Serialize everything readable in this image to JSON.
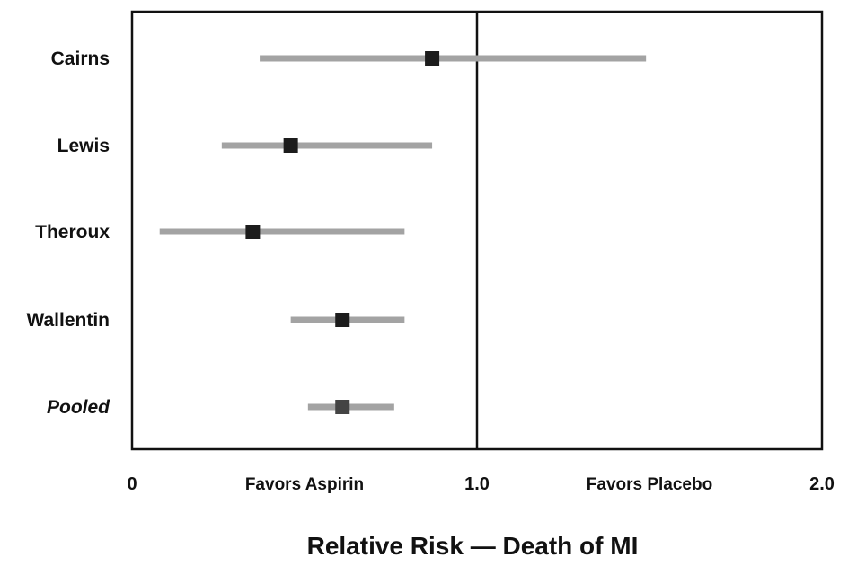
{
  "chart_data": {
    "type": "forest",
    "xlabel": "Relative Risk — Death of MI",
    "xlim": [
      0,
      2.0
    ],
    "reference_line": 1.0,
    "x_ticks": [
      {
        "value": 0,
        "label": "0"
      },
      {
        "value": 1.0,
        "label": "1.0"
      },
      {
        "value": 2.0,
        "label": "2.0"
      }
    ],
    "annotations": [
      {
        "text": "Favors Aspirin",
        "x": 0.5
      },
      {
        "text": "Favors Placebo",
        "x": 1.5
      }
    ],
    "studies": [
      {
        "name": "Cairns",
        "estimate": 0.87,
        "ci_low": 0.37,
        "ci_high": 1.49,
        "italic": false
      },
      {
        "name": "Lewis",
        "estimate": 0.46,
        "ci_low": 0.26,
        "ci_high": 0.87,
        "italic": false
      },
      {
        "name": "Theroux",
        "estimate": 0.35,
        "ci_low": 0.08,
        "ci_high": 0.79,
        "italic": false
      },
      {
        "name": "Wallentin",
        "estimate": 0.61,
        "ci_low": 0.46,
        "ci_high": 0.79,
        "italic": false
      },
      {
        "name": "Pooled",
        "estimate": 0.61,
        "ci_low": 0.51,
        "ci_high": 0.76,
        "italic": true
      }
    ],
    "colors": {
      "ci_line": "#a3a3a3",
      "marker": "#1c1c1c",
      "pooled_marker": "#444444",
      "frame": "#111111"
    }
  }
}
